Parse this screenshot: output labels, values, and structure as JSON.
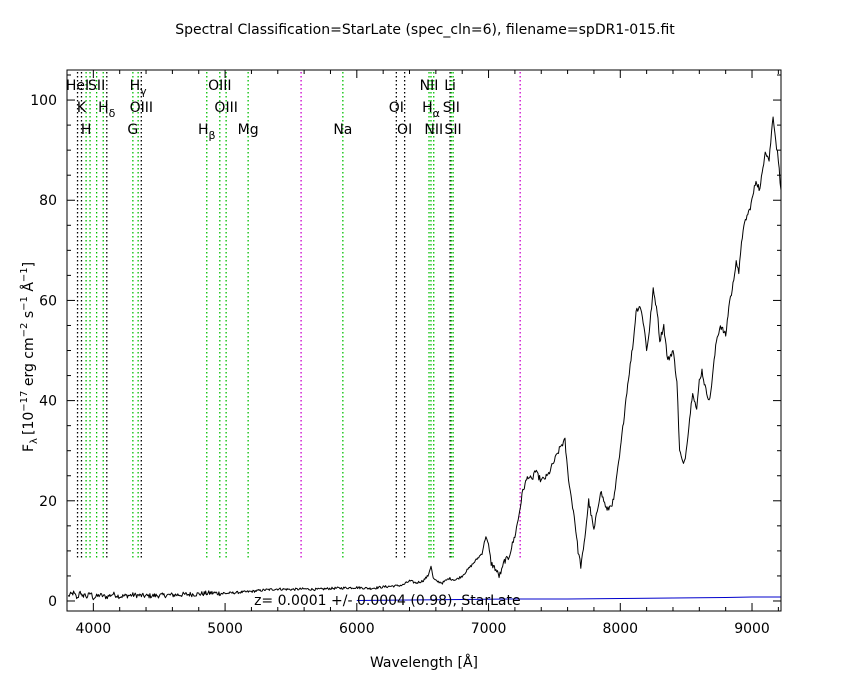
{
  "chart_data": {
    "type": "line",
    "title": "Spectral Classification=StarLate (spec_cln=6), filename=spDR1-015.fit",
    "xlabel": "Wavelength [Å]",
    "ylabel": "F_λ [10^-17 erg cm^-2 s^-1 Å^-1]",
    "ylabel_parts": {
      "f": "F",
      "f_sub": "λ",
      "open": "[10",
      "exp1": "−17",
      "mid1": " erg cm",
      "exp2": "−2",
      "mid2": " s",
      "exp3": "−1",
      "mid3": " Å",
      "exp4": "−1",
      "close": "]"
    },
    "xlim": [
      3800,
      9220
    ],
    "ylim": [
      -2,
      106
    ],
    "xticks": [
      4000,
      5000,
      6000,
      7000,
      8000,
      9000
    ],
    "yticks": [
      0,
      20,
      40,
      60,
      80,
      100
    ],
    "annotation": "z= 0.0001 +/- 0.0004 (0.98), StarLate",
    "colors": {
      "spectrum": "#000000",
      "fit": "#0000cc",
      "line_green": "#00c000",
      "line_black": "#000000",
      "line_magenta": "#cc00cc"
    },
    "series": [
      {
        "name": "spectrum",
        "x": [
          3810,
          3850,
          3880,
          3900,
          3915,
          3930,
          3950,
          3980,
          4000,
          4050,
          4100,
          4150,
          4200,
          4300,
          4400,
          4500,
          4600,
          4700,
          4800,
          4900,
          5000,
          5100,
          5200,
          5300,
          5400,
          5500,
          5600,
          5700,
          5800,
          5900,
          6000,
          6100,
          6200,
          6280,
          6300,
          6350,
          6400,
          6450,
          6500,
          6540,
          6563,
          6580,
          6600,
          6650,
          6700,
          6750,
          6800,
          6850,
          6900,
          6950,
          6980,
          7000,
          7020,
          7050,
          7080,
          7100,
          7120,
          7150,
          7200,
          7230,
          7260,
          7300,
          7330,
          7350,
          7400,
          7450,
          7500,
          7550,
          7580,
          7600,
          7620,
          7650,
          7680,
          7700,
          7720,
          7760,
          7800,
          7850,
          7900,
          7950,
          8000,
          8050,
          8100,
          8120,
          8150,
          8180,
          8200,
          8220,
          8250,
          8280,
          8300,
          8330,
          8360,
          8400,
          8430,
          8450,
          8480,
          8500,
          8520,
          8550,
          8580,
          8600,
          8620,
          8650,
          8680,
          8700,
          8730,
          8760,
          8800,
          8830,
          8850,
          8880,
          8900,
          8920,
          8950,
          8980,
          9000,
          9030,
          9060,
          9100,
          9130,
          9160,
          9180,
          9200,
          9220
        ],
        "y": [
          1,
          1.6,
          0.4,
          2.2,
          0.6,
          1.4,
          0.8,
          1.6,
          0.6,
          1.2,
          0.8,
          1.4,
          0.9,
          1.2,
          1,
          1.1,
          1.2,
          1.3,
          1.4,
          1.6,
          1.5,
          1.7,
          1.9,
          2.2,
          2.4,
          2.3,
          2.4,
          2.3,
          2.5,
          2.6,
          2.7,
          2.5,
          2.8,
          3,
          3,
          3.2,
          4,
          3.6,
          4,
          5,
          7,
          4.5,
          4,
          3.6,
          4.5,
          4.2,
          5,
          6.5,
          8,
          9.5,
          13,
          11,
          7.5,
          6.5,
          5,
          6,
          8,
          8.5,
          13,
          17,
          22,
          25,
          24,
          26,
          24,
          25,
          28,
          31,
          32,
          26,
          22,
          17,
          10,
          7,
          10,
          20,
          14,
          22,
          18,
          20,
          30,
          42,
          52,
          58,
          59,
          55,
          50,
          54,
          62,
          58,
          52,
          55,
          48,
          50,
          44,
          30,
          27,
          30,
          35,
          42,
          38,
          44,
          46,
          42,
          40,
          45,
          52,
          55,
          53,
          60,
          62,
          68,
          65,
          72,
          76,
          78,
          80,
          84,
          82,
          90,
          88,
          97,
          92,
          88,
          82
        ]
      },
      {
        "name": "fit",
        "x": [
          6000,
          6400,
          6800,
          7200,
          7600,
          8000,
          8400,
          8800,
          9000,
          9200,
          9220
        ],
        "y": [
          0.1,
          0.2,
          0.3,
          0.4,
          0.4,
          0.5,
          0.6,
          0.7,
          0.8,
          0.8,
          0.8
        ]
      }
    ],
    "lines": [
      {
        "x": 3880,
        "color": "black",
        "labels": [
          {
            "text": "HeI",
            "row": 0
          }
        ]
      },
      {
        "x": 3910,
        "color": "black",
        "labels": [
          {
            "text": "K",
            "row": 1
          }
        ]
      },
      {
        "x": 3945,
        "color": "green",
        "labels": [
          {
            "text": "H",
            "row": 2
          }
        ]
      },
      {
        "x": 3975,
        "color": "green",
        "labels": []
      },
      {
        "x": 4025,
        "color": "green",
        "labels": [
          {
            "text": "SII",
            "row": 0
          }
        ]
      },
      {
        "x": 4075,
        "color": "green",
        "labels": []
      },
      {
        "x": 4102,
        "color": "black",
        "labels": [
          {
            "text": "H",
            "sub": "δ",
            "row": 1
          }
        ]
      },
      {
        "x": 4300,
        "color": "green",
        "labels": [
          {
            "text": "G",
            "row": 2
          }
        ]
      },
      {
        "x": 4340,
        "color": "green",
        "labels": [
          {
            "text": "H",
            "sub": "γ",
            "row": 0
          }
        ]
      },
      {
        "x": 4364,
        "color": "black",
        "labels": [
          {
            "text": "OIII",
            "row": 1
          }
        ]
      },
      {
        "x": 4861,
        "color": "green",
        "labels": [
          {
            "text": "H",
            "sub": "β",
            "row": 2
          }
        ]
      },
      {
        "x": 4960,
        "color": "green",
        "labels": [
          {
            "text": "OIII",
            "row": 0
          }
        ]
      },
      {
        "x": 5008,
        "color": "green",
        "labels": [
          {
            "text": "OIII",
            "row": 1
          }
        ]
      },
      {
        "x": 5175,
        "color": "green",
        "labels": [
          {
            "text": "Mg",
            "row": 2
          }
        ]
      },
      {
        "x": 5577,
        "color": "magenta",
        "labels": []
      },
      {
        "x": 5894,
        "color": "green",
        "labels": [
          {
            "text": "Na",
            "row": 2
          }
        ]
      },
      {
        "x": 6300,
        "color": "black",
        "labels": [
          {
            "text": "OI",
            "row": 1
          }
        ]
      },
      {
        "x": 6363,
        "color": "black",
        "labels": [
          {
            "text": "OI",
            "row": 2
          }
        ]
      },
      {
        "x": 6548,
        "color": "green",
        "labels": [
          {
            "text": "NII",
            "row": 0
          }
        ]
      },
      {
        "x": 6563,
        "color": "green",
        "labels": [
          {
            "text": "H",
            "sub": "α",
            "row": 1
          }
        ]
      },
      {
        "x": 6584,
        "color": "green",
        "labels": [
          {
            "text": "NII",
            "row": 2
          }
        ]
      },
      {
        "x": 6708,
        "color": "black",
        "labels": [
          {
            "text": "Li",
            "row": 0
          }
        ]
      },
      {
        "x": 6717,
        "color": "green",
        "labels": [
          {
            "text": "SII",
            "row": 1
          }
        ]
      },
      {
        "x": 6731,
        "color": "green",
        "labels": [
          {
            "text": "SII",
            "row": 2
          }
        ]
      },
      {
        "x": 7240,
        "color": "magenta",
        "labels": []
      }
    ]
  }
}
